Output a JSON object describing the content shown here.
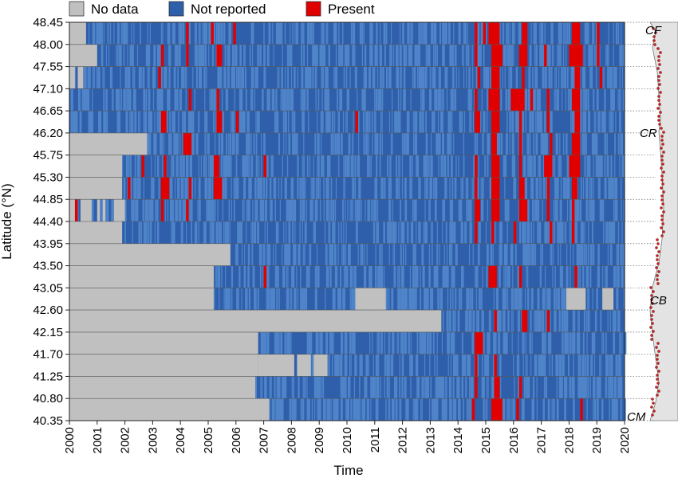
{
  "colors": {
    "no_data": "#c0c0c0",
    "not_reported_dark": "#2f5faa",
    "not_reported_light": "#4f84c9",
    "present": "#e00000",
    "grid": "#555555",
    "coast": "#e3e3e3"
  },
  "chart_data": {
    "type": "heatmap",
    "title": "",
    "xlabel": "Time",
    "ylabel": "Latitude (°N)",
    "x_ticks": [
      "2000",
      "2001",
      "2002",
      "2003",
      "2004",
      "2005",
      "2006",
      "2007",
      "2008",
      "2009",
      "2010",
      "2011",
      "2012",
      "2013",
      "2014",
      "2015",
      "2016",
      "2017",
      "2018",
      "2019",
      "2020"
    ],
    "xlim": [
      2000,
      2020
    ],
    "y_ticks": [
      "48.45",
      "48.00",
      "47.55",
      "47.10",
      "46.65",
      "46.20",
      "45.75",
      "45.30",
      "44.85",
      "44.40",
      "43.95",
      "43.50",
      "43.05",
      "42.60",
      "42.15",
      "41.70",
      "41.25",
      "40.80",
      "40.35"
    ],
    "legend": [
      {
        "key": "no_data",
        "label": "No data"
      },
      {
        "key": "not_reported",
        "label": "Not reported"
      },
      {
        "key": "present",
        "label": "Present"
      }
    ],
    "legend_position": "top",
    "categories": [
      "No data",
      "Not reported",
      "Present"
    ],
    "site_labels": [
      "CF",
      "CR",
      "CB",
      "CM"
    ],
    "rows": [
      {
        "lat": "48.45",
        "data_start": 2000.6,
        "gaps": [],
        "present": [
          [
            2004.2,
            2004.3
          ],
          [
            2005.1,
            2005.2
          ],
          [
            2005.9,
            2006.0
          ],
          [
            2014.6,
            2014.7
          ],
          [
            2014.9,
            2015.0
          ],
          [
            2015.1,
            2015.5
          ],
          [
            2016.3,
            2016.5
          ],
          [
            2018.1,
            2018.4
          ],
          [
            2019.0,
            2019.1
          ]
        ]
      },
      {
        "lat": "48.00",
        "data_start": 2001.0,
        "gaps": [],
        "present": [
          [
            2003.3,
            2003.4
          ],
          [
            2004.2,
            2004.3
          ],
          [
            2005.3,
            2005.5
          ],
          [
            2014.6,
            2014.7
          ],
          [
            2015.2,
            2015.6
          ],
          [
            2016.2,
            2016.5
          ],
          [
            2017.1,
            2017.2
          ],
          [
            2018.0,
            2018.5
          ],
          [
            2019.0,
            2019.1
          ]
        ]
      },
      {
        "lat": "47.55",
        "data_start": 2000.2,
        "gaps": [
          [
            2000.3,
            2000.5
          ]
        ],
        "present": [
          [
            2003.2,
            2003.3
          ],
          [
            2014.7,
            2014.8
          ],
          [
            2015.2,
            2015.5
          ],
          [
            2016.3,
            2016.4
          ],
          [
            2018.2,
            2018.4
          ],
          [
            2019.1,
            2019.2
          ]
        ]
      },
      {
        "lat": "47.10",
        "data_start": 2000.0,
        "gaps": [],
        "present": [
          [
            2004.3,
            2004.4
          ],
          [
            2005.3,
            2005.4
          ],
          [
            2014.6,
            2014.7
          ],
          [
            2015.1,
            2015.5
          ],
          [
            2015.9,
            2016.4
          ],
          [
            2016.6,
            2016.7
          ],
          [
            2017.2,
            2017.3
          ],
          [
            2018.1,
            2018.4
          ]
        ]
      },
      {
        "lat": "46.65",
        "data_start": 2000.0,
        "gaps": [],
        "present": [
          [
            2003.3,
            2003.5
          ],
          [
            2005.3,
            2005.5
          ],
          [
            2006.0,
            2006.1
          ],
          [
            2010.3,
            2010.4
          ],
          [
            2014.6,
            2014.8
          ],
          [
            2015.2,
            2015.5
          ],
          [
            2016.2,
            2016.3
          ],
          [
            2017.2,
            2017.3
          ],
          [
            2018.2,
            2018.4
          ]
        ]
      },
      {
        "lat": "46.20",
        "data_start": 2002.8,
        "gaps": [],
        "present": [
          [
            2004.1,
            2004.4
          ],
          [
            2015.2,
            2015.4
          ],
          [
            2016.2,
            2016.3
          ],
          [
            2017.3,
            2017.4
          ],
          [
            2018.1,
            2018.4
          ]
        ]
      },
      {
        "lat": "45.75",
        "data_start": 2001.9,
        "gaps": [],
        "present": [
          [
            2002.6,
            2002.7
          ],
          [
            2003.4,
            2003.5
          ],
          [
            2005.2,
            2005.4
          ],
          [
            2007.0,
            2007.1
          ],
          [
            2014.6,
            2014.7
          ],
          [
            2015.2,
            2015.5
          ],
          [
            2016.2,
            2016.3
          ],
          [
            2017.1,
            2017.4
          ],
          [
            2018.0,
            2018.4
          ]
        ]
      },
      {
        "lat": "45.30",
        "data_start": 2001.9,
        "gaps": [],
        "present": [
          [
            2002.1,
            2002.2
          ],
          [
            2003.3,
            2003.6
          ],
          [
            2004.3,
            2004.4
          ],
          [
            2005.2,
            2005.5
          ],
          [
            2014.6,
            2014.7
          ],
          [
            2015.2,
            2015.5
          ],
          [
            2016.2,
            2016.4
          ],
          [
            2017.2,
            2017.3
          ],
          [
            2018.1,
            2018.3
          ]
        ]
      },
      {
        "lat": "44.85",
        "data_start": 2000.2,
        "gaps": [
          [
            2000.4,
            2000.8
          ],
          [
            2001.0,
            2001.1
          ],
          [
            2001.2,
            2001.3
          ],
          [
            2001.6,
            2002.0
          ]
        ],
        "present": [
          [
            2000.2,
            2000.3
          ],
          [
            2003.3,
            2003.4
          ],
          [
            2004.2,
            2004.3
          ],
          [
            2014.6,
            2014.8
          ],
          [
            2015.2,
            2015.5
          ],
          [
            2016.2,
            2016.5
          ],
          [
            2017.2,
            2017.3
          ],
          [
            2018.1,
            2018.2
          ]
        ]
      },
      {
        "lat": "44.40",
        "data_start": 2001.9,
        "gaps": [],
        "present": [
          [
            2014.6,
            2014.7
          ],
          [
            2015.2,
            2015.3
          ],
          [
            2016.0,
            2016.1
          ],
          [
            2017.3,
            2017.4
          ],
          [
            2018.1,
            2018.2
          ]
        ]
      },
      {
        "lat": "43.95",
        "data_start": 2005.8,
        "gaps": [],
        "present": []
      },
      {
        "lat": "43.50",
        "data_start": 2005.2,
        "gaps": [],
        "present": [
          [
            2007.0,
            2007.1
          ],
          [
            2015.1,
            2015.4
          ],
          [
            2016.2,
            2016.3
          ],
          [
            2018.2,
            2018.3
          ]
        ]
      },
      {
        "lat": "43.05",
        "data_start": 2005.2,
        "gaps": [
          [
            2010.3,
            2011.4
          ],
          [
            2017.9,
            2018.6
          ],
          [
            2019.2,
            2019.6
          ]
        ],
        "present": []
      },
      {
        "lat": "42.60",
        "data_start": 2013.4,
        "gaps": [
          [
            2010.5,
            2010.6
          ]
        ],
        "present": [
          [
            2015.3,
            2015.4
          ],
          [
            2016.3,
            2016.5
          ],
          [
            2017.2,
            2017.3
          ]
        ]
      },
      {
        "lat": "42.15",
        "data_start": 2006.8,
        "gaps": [],
        "present": [
          [
            2014.6,
            2014.9
          ]
        ]
      },
      {
        "lat": "41.70",
        "data_start": 2006.8,
        "gaps": [
          [
            2006.8,
            2008.1
          ],
          [
            2008.2,
            2008.7
          ],
          [
            2008.8,
            2009.3
          ]
        ],
        "present": [
          [
            2014.6,
            2014.7
          ],
          [
            2015.3,
            2015.4
          ]
        ]
      },
      {
        "lat": "41.25",
        "data_start": 2006.7,
        "gaps": [],
        "present": [
          [
            2014.6,
            2014.7
          ],
          [
            2015.3,
            2015.5
          ],
          [
            2016.2,
            2016.3
          ]
        ]
      },
      {
        "lat": "40.80",
        "data_start": 2007.2,
        "gaps": [],
        "present": [
          [
            2014.5,
            2014.6
          ],
          [
            2015.2,
            2015.6
          ],
          [
            2016.1,
            2016.2
          ],
          [
            2018.4,
            2018.5
          ]
        ]
      }
    ]
  }
}
